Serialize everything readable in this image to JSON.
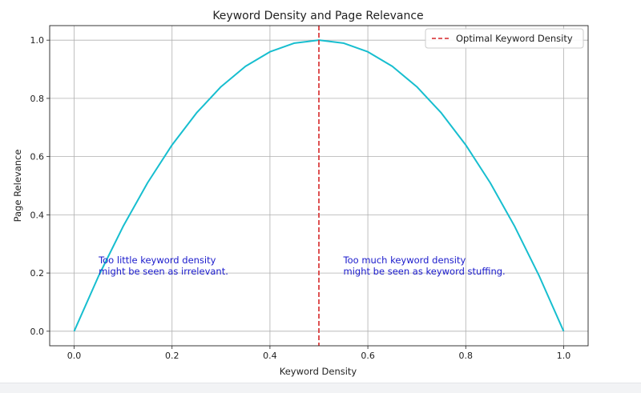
{
  "chart_data": {
    "type": "line",
    "title": "Keyword Density and Page Relevance",
    "xlabel": "Keyword Density",
    "ylabel": "Page Relevance",
    "xlim": [
      -0.05,
      1.05
    ],
    "ylim": [
      -0.05,
      1.05
    ],
    "xticks": [
      "0.0",
      "0.2",
      "0.4",
      "0.6",
      "0.8",
      "1.0"
    ],
    "yticks": [
      "0.0",
      "0.2",
      "0.4",
      "0.6",
      "0.8",
      "1.0"
    ],
    "grid": true,
    "legend_position": "top-right",
    "series": [
      {
        "style": "solid",
        "color": "#17becf",
        "x": [
          0.0,
          0.05,
          0.1,
          0.15,
          0.2,
          0.25,
          0.3,
          0.35,
          0.4,
          0.45,
          0.5,
          0.55,
          0.6,
          0.65,
          0.7,
          0.75,
          0.8,
          0.85,
          0.9,
          0.95,
          1.0
        ],
        "y": [
          0.0,
          0.19,
          0.36,
          0.51,
          0.64,
          0.75,
          0.84,
          0.91,
          0.96,
          0.99,
          1.0,
          0.99,
          0.96,
          0.91,
          0.84,
          0.75,
          0.64,
          0.51,
          0.36,
          0.19,
          0.0
        ]
      }
    ],
    "vline": {
      "x": 0.5,
      "color": "#d62728",
      "style": "dashed",
      "legend": "Optimal Keyword Density"
    },
    "annotations": [
      {
        "x": 0.05,
        "y": 0.2,
        "color": "#1a1acc",
        "lines": [
          "Too little keyword density",
          "might be seen as irrelevant."
        ]
      },
      {
        "x": 0.55,
        "y": 0.2,
        "color": "#1a1acc",
        "lines": [
          "Too much keyword density",
          "might be seen as keyword stuffing."
        ]
      }
    ]
  }
}
